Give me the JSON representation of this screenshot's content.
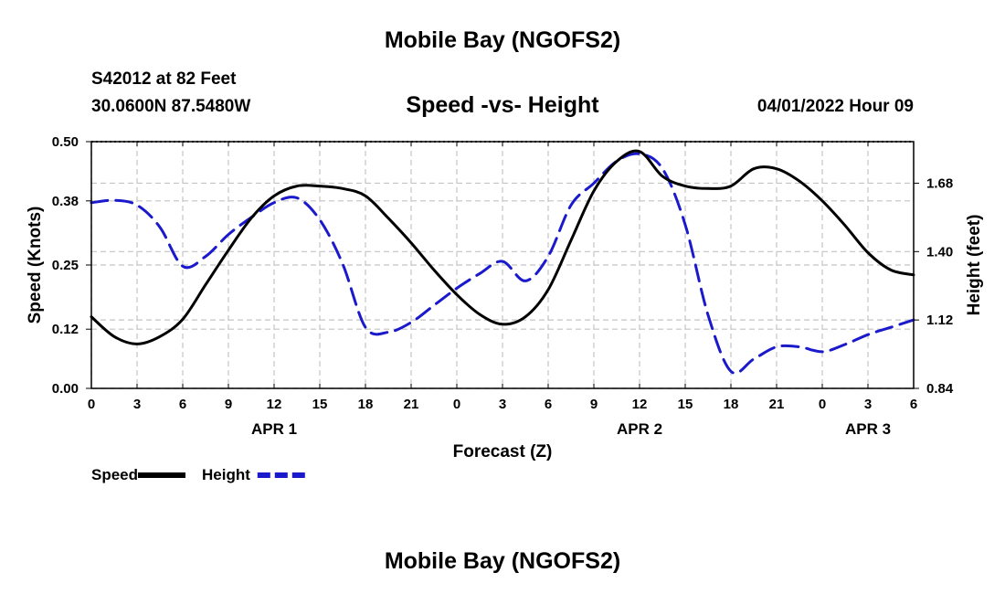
{
  "header": {
    "title": "Mobile Bay (NGOFS2)",
    "station": "S42012 at 82 Feet",
    "coordinates": "30.0600N  87.5480W",
    "subtitle": "Speed -vs- Height",
    "datetime": "04/01/2022 Hour 09"
  },
  "footer": {
    "title": "Mobile Bay (NGOFS2)"
  },
  "chart_data": {
    "type": "line",
    "xlabel": "Forecast (Z)",
    "ylabel_left": "Speed (Knots)",
    "ylabel_right": "Height (feet)",
    "x_tick_labels": [
      "0",
      "3",
      "6",
      "9",
      "12",
      "15",
      "18",
      "21",
      "0",
      "3",
      "6",
      "9",
      "12",
      "15",
      "18",
      "21",
      "0",
      "3",
      "6"
    ],
    "date_labels": [
      {
        "label": "APR 1",
        "at_hour": 12
      },
      {
        "label": "APR 2",
        "at_hour": 36
      },
      {
        "label": "APR 3",
        "at_hour": 51
      }
    ],
    "x_range_hours": [
      0,
      54
    ],
    "ylim_left": [
      0.0,
      0.5
    ],
    "y_ticks_left": [
      "0.00",
      "0.12",
      "0.25",
      "0.38",
      "0.50"
    ],
    "ylim_right": [
      0.84,
      1.85
    ],
    "y_ticks_right": [
      "0.84",
      "1.12",
      "1.40",
      "1.68"
    ],
    "grid": true,
    "legend_position": "bottom-left",
    "series": [
      {
        "name": "Speed",
        "axis": "left",
        "color": "#000000",
        "style": "solid",
        "x": [
          0,
          1.5,
          3,
          4.5,
          6,
          7.5,
          9,
          10.5,
          12,
          13.5,
          15,
          16.5,
          18,
          19.5,
          21,
          22.5,
          24,
          25.5,
          27,
          28.5,
          30,
          31.5,
          33,
          34.5,
          36,
          37.5,
          39,
          40.5,
          42,
          43.5,
          45,
          46.5,
          48,
          49.5,
          51,
          52.5,
          54
        ],
        "values": [
          0.145,
          0.105,
          0.09,
          0.105,
          0.14,
          0.21,
          0.28,
          0.345,
          0.39,
          0.41,
          0.41,
          0.405,
          0.39,
          0.345,
          0.295,
          0.24,
          0.19,
          0.15,
          0.13,
          0.145,
          0.2,
          0.3,
          0.4,
          0.46,
          0.48,
          0.43,
          0.41,
          0.405,
          0.41,
          0.445,
          0.445,
          0.42,
          0.38,
          0.33,
          0.275,
          0.24,
          0.23
        ]
      },
      {
        "name": "Height",
        "axis": "right",
        "color": "#1a1acc",
        "style": "dashed",
        "x": [
          0,
          1.5,
          3,
          4.5,
          6,
          7.5,
          9,
          10.5,
          12,
          13.5,
          15,
          16.5,
          18,
          19.5,
          21,
          22.5,
          24,
          25.5,
          27,
          28.5,
          30,
          31.5,
          33,
          34.5,
          36,
          37.5,
          39,
          40.5,
          42,
          43.5,
          45,
          46.5,
          48,
          49.5,
          51,
          52.5,
          54
        ],
        "values": [
          1.6,
          1.61,
          1.59,
          1.5,
          1.34,
          1.38,
          1.47,
          1.54,
          1.6,
          1.62,
          1.53,
          1.35,
          1.09,
          1.07,
          1.11,
          1.18,
          1.25,
          1.31,
          1.36,
          1.28,
          1.38,
          1.59,
          1.68,
          1.77,
          1.8,
          1.74,
          1.51,
          1.14,
          0.91,
          0.96,
          1.01,
          1.01,
          0.99,
          1.02,
          1.06,
          1.09,
          1.12
        ]
      }
    ]
  }
}
